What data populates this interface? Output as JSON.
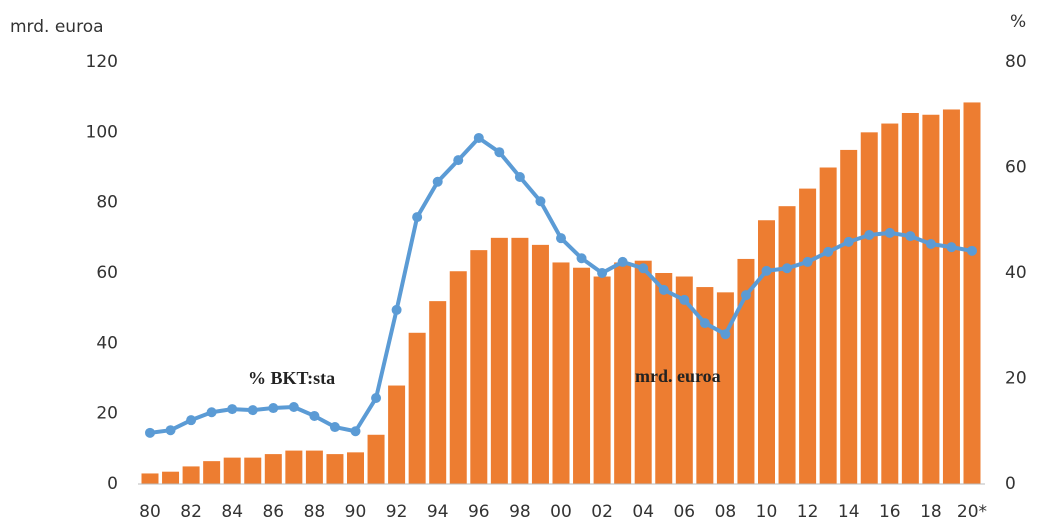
{
  "chart_data": {
    "type": "bar",
    "y_label": "mrd. euroa",
    "y2_label": "%",
    "annotations": [
      {
        "text": "% BKT:sta"
      },
      {
        "text": "mrd. euroa"
      }
    ],
    "categories": [
      "80",
      null,
      "82",
      null,
      "84",
      null,
      "86",
      null,
      "88",
      null,
      "90",
      null,
      "92",
      null,
      "94",
      null,
      "96",
      null,
      "98",
      null,
      "00",
      null,
      "02",
      null,
      "04",
      null,
      "06",
      null,
      "08",
      null,
      "10",
      null,
      "12",
      null,
      "14",
      null,
      "16",
      null,
      "18",
      null,
      "20*"
    ],
    "series": [
      {
        "type": "bar",
        "color": "#ed7d31",
        "values": [
          3,
          3.5,
          5,
          6.5,
          7.5,
          7.5,
          8.5,
          9.5,
          9.5,
          8.5,
          9,
          14,
          28,
          43,
          52,
          60.5,
          66.5,
          70,
          70,
          68,
          63,
          61.5,
          59,
          63,
          63.5,
          60,
          59,
          56,
          54.5,
          64,
          75,
          79,
          84,
          90,
          95,
          100,
          102.5,
          105.5,
          105,
          106.5,
          108.5
        ]
      },
      {
        "type": "line",
        "axis": "y2",
        "color": "#5b9bd5",
        "values": [
          9.7,
          10.2,
          12.1,
          13.6,
          14.2,
          14,
          14.4,
          14.6,
          12.9,
          10.8,
          10,
          16.3,
          33,
          50.6,
          57.3,
          61.4,
          65.6,
          62.9,
          58.2,
          53.6,
          46.6,
          42.8,
          40,
          42.1,
          40.9,
          36.8,
          34.9,
          30.5,
          28.4,
          35.8,
          40.4,
          40.9,
          42.1,
          44,
          45.9,
          47.2,
          47.6,
          47,
          45.5,
          44.9,
          44.2
        ]
      }
    ],
    "ylim": [
      0,
      120
    ],
    "yticks": [
      0,
      20,
      40,
      60,
      80,
      100,
      120
    ],
    "y2lim": [
      0,
      80
    ],
    "y2ticks": [
      0,
      20,
      40,
      60,
      80
    ],
    "grid": false
  }
}
